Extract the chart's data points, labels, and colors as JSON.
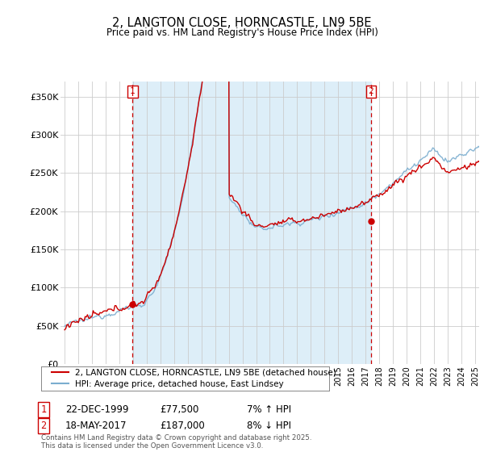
{
  "title": "2, LANGTON CLOSE, HORNCASTLE, LN9 5BE",
  "subtitle": "Price paid vs. HM Land Registry's House Price Index (HPI)",
  "legend_line1": "2, LANGTON CLOSE, HORNCASTLE, LN9 5BE (detached house)",
  "legend_line2": "HPI: Average price, detached house, East Lindsey",
  "annotation1_date": "22-DEC-1999",
  "annotation1_price": "£77,500",
  "annotation1_hpi": "7% ↑ HPI",
  "annotation2_date": "18-MAY-2017",
  "annotation2_price": "£187,000",
  "annotation2_hpi": "8% ↓ HPI",
  "footer": "Contains HM Land Registry data © Crown copyright and database right 2025.\nThis data is licensed under the Open Government Licence v3.0.",
  "red_color": "#cc0000",
  "blue_color": "#7aadcf",
  "shade_color": "#ddeef8",
  "annotation_color": "#cc0000",
  "bg_color": "#ffffff",
  "grid_color": "#cccccc",
  "ylim": [
    0,
    370000
  ],
  "yticks": [
    0,
    50000,
    100000,
    150000,
    200000,
    250000,
    300000,
    350000
  ],
  "ytick_labels": [
    "£0",
    "£50K",
    "£100K",
    "£150K",
    "£200K",
    "£250K",
    "£300K",
    "£350K"
  ],
  "purchase1_x": 1999.97,
  "purchase1_y": 77500,
  "purchase2_x": 2017.38,
  "purchase2_y": 187000,
  "xlim_left": 1994.7,
  "xlim_right": 2025.3
}
